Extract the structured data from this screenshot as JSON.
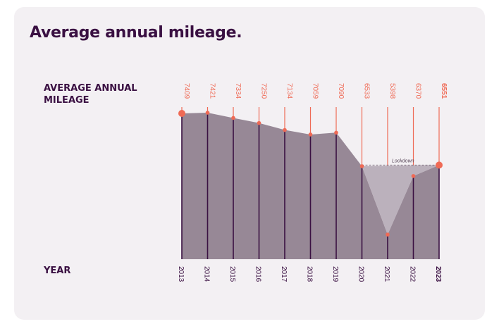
{
  "title": "Average annual mileage.",
  "labels": {
    "mileage": "AVERAGE ANNUAL MILEAGE",
    "year": "YEAR"
  },
  "chart_data": {
    "type": "area",
    "title": "Average annual mileage.",
    "ylabel": "AVERAGE ANNUAL MILEAGE",
    "xlabel": "YEAR",
    "categories": [
      "2013",
      "2014",
      "2015",
      "2016",
      "2017",
      "2018",
      "2019",
      "2020",
      "2021",
      "2022",
      "2023"
    ],
    "series": [
      {
        "name": "Average annual mileage",
        "values": [
          7409,
          7421,
          7334,
          7250,
          7134,
          7059,
          7090,
          6533,
          5398,
          6370,
          6551
        ]
      }
    ],
    "annotation": {
      "text": "Lockdown",
      "from": "2020",
      "to": "2023",
      "baseline": 6551
    },
    "highlight": [
      "2013",
      "2023"
    ],
    "bold_last": true,
    "ylim": [
      5398,
      7421
    ]
  },
  "colors": {
    "area": "#978896",
    "lockdown": "#bbb1bc",
    "line": "#3a1042",
    "marker": "#ef6a55",
    "text": "#3a1042"
  }
}
